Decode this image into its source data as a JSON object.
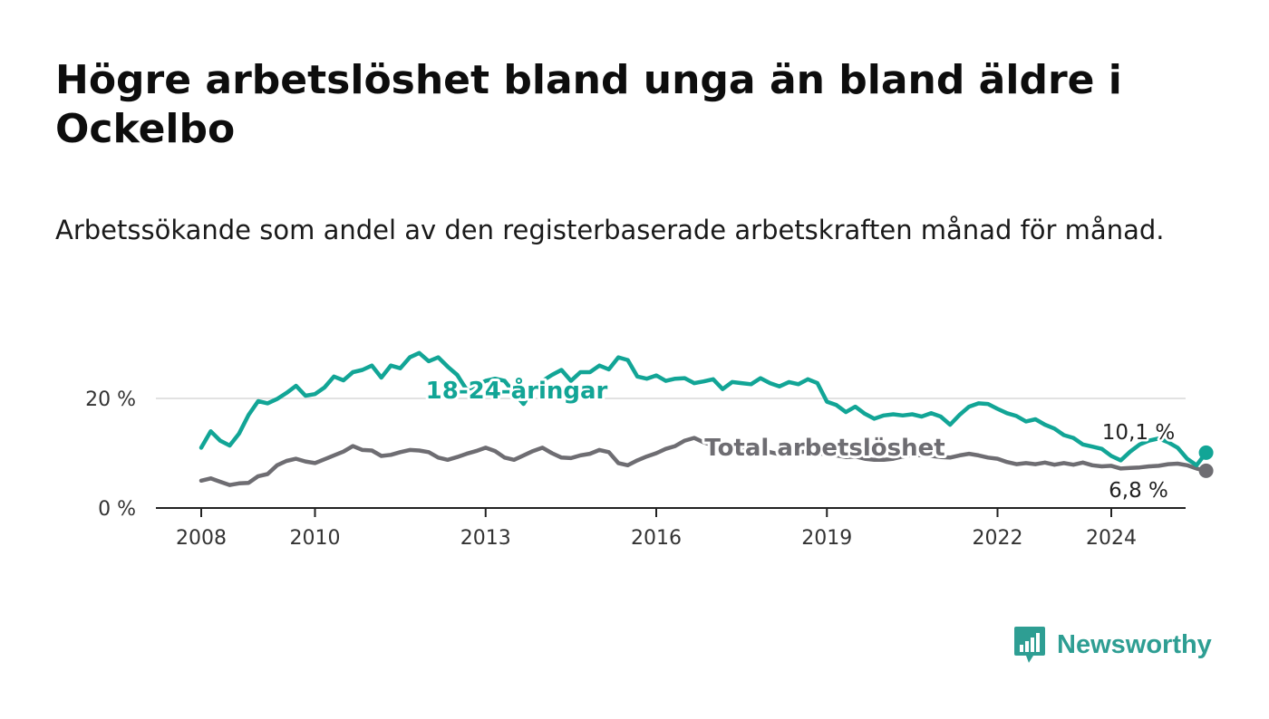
{
  "title": "Högre arbetslöshet bland unga än bland äldre i Ockelbo",
  "subtitle": "Arbetssökande som andel av den registerbaserade arbetskraften månad för månad.",
  "logo": {
    "text": "Newsworthy",
    "icon": "bar-chart-speech-bubble-icon",
    "color": "#2e9e93"
  },
  "chart_data": {
    "type": "line",
    "title": "Högre arbetslöshet bland unga än bland äldre i Ockelbo",
    "subtitle": "Arbetssökande som andel av den registerbaserade arbetskraften månad för månad.",
    "xlabel": "",
    "ylabel": "",
    "x_range": [
      "2007-01",
      "2025-12"
    ],
    "ylim": [
      0,
      30
    ],
    "y_ticks": [
      0,
      20
    ],
    "y_tick_labels": [
      "0 %",
      "20 %"
    ],
    "x_ticks": [
      "2008-01",
      "2010-01",
      "2013-01",
      "2016-01",
      "2019-01",
      "2022-01",
      "2024-01"
    ],
    "x_tick_labels": [
      "2008",
      "2010",
      "2013",
      "2016",
      "2019",
      "2022",
      "2024"
    ],
    "grid": true,
    "series": [
      {
        "name": "18-24-åringar",
        "color": "#12a596",
        "end_label": "10,1 %",
        "points": [
          [
            "2008-01",
            11.0
          ],
          [
            "2008-03",
            14.0
          ],
          [
            "2008-05",
            12.3
          ],
          [
            "2008-07",
            11.4
          ],
          [
            "2008-09",
            13.6
          ],
          [
            "2008-11",
            17.0
          ],
          [
            "2009-01",
            19.5
          ],
          [
            "2009-03",
            19.1
          ],
          [
            "2009-05",
            19.9
          ],
          [
            "2009-07",
            21.0
          ],
          [
            "2009-09",
            22.3
          ],
          [
            "2009-11",
            20.5
          ],
          [
            "2010-01",
            20.8
          ],
          [
            "2010-03",
            22.0
          ],
          [
            "2010-05",
            24.0
          ],
          [
            "2010-07",
            23.3
          ],
          [
            "2010-09",
            24.8
          ],
          [
            "2010-11",
            25.2
          ],
          [
            "2011-01",
            26.0
          ],
          [
            "2011-03",
            23.8
          ],
          [
            "2011-05",
            26.0
          ],
          [
            "2011-07",
            25.5
          ],
          [
            "2011-09",
            27.5
          ],
          [
            "2011-11",
            28.3
          ],
          [
            "2012-01",
            26.8
          ],
          [
            "2012-03",
            27.5
          ],
          [
            "2012-05",
            25.8
          ],
          [
            "2012-07",
            24.3
          ],
          [
            "2012-09",
            21.6
          ],
          [
            "2012-11",
            22.3
          ],
          [
            "2013-01",
            23.2
          ],
          [
            "2013-03",
            23.6
          ],
          [
            "2013-05",
            23.2
          ],
          [
            "2013-07",
            21.0
          ],
          [
            "2013-09",
            19.0
          ],
          [
            "2013-11",
            21.7
          ],
          [
            "2014-01",
            23.2
          ],
          [
            "2014-03",
            24.3
          ],
          [
            "2014-05",
            25.2
          ],
          [
            "2014-07",
            23.2
          ],
          [
            "2014-09",
            24.8
          ],
          [
            "2014-11",
            24.8
          ],
          [
            "2015-01",
            26.0
          ],
          [
            "2015-03",
            25.3
          ],
          [
            "2015-05",
            27.5
          ],
          [
            "2015-07",
            27.0
          ],
          [
            "2015-09",
            24.0
          ],
          [
            "2015-11",
            23.6
          ],
          [
            "2016-01",
            24.2
          ],
          [
            "2016-03",
            23.2
          ],
          [
            "2016-05",
            23.6
          ],
          [
            "2016-07",
            23.7
          ],
          [
            "2016-09",
            22.8
          ],
          [
            "2016-11",
            23.1
          ],
          [
            "2017-01",
            23.5
          ],
          [
            "2017-03",
            21.7
          ],
          [
            "2017-05",
            23.0
          ],
          [
            "2017-07",
            22.8
          ],
          [
            "2017-09",
            22.6
          ],
          [
            "2017-11",
            23.7
          ],
          [
            "2018-01",
            22.8
          ],
          [
            "2018-03",
            22.2
          ],
          [
            "2018-05",
            23.0
          ],
          [
            "2018-07",
            22.6
          ],
          [
            "2018-09",
            23.5
          ],
          [
            "2018-11",
            22.8
          ],
          [
            "2019-01",
            19.4
          ],
          [
            "2019-03",
            18.8
          ],
          [
            "2019-05",
            17.5
          ],
          [
            "2019-07",
            18.5
          ],
          [
            "2019-09",
            17.2
          ],
          [
            "2019-11",
            16.3
          ],
          [
            "2020-01",
            16.9
          ],
          [
            "2020-03",
            17.1
          ],
          [
            "2020-05",
            16.9
          ],
          [
            "2020-07",
            17.1
          ],
          [
            "2020-09",
            16.7
          ],
          [
            "2020-11",
            17.3
          ],
          [
            "2021-01",
            16.7
          ],
          [
            "2021-03",
            15.2
          ],
          [
            "2021-05",
            17.0
          ],
          [
            "2021-07",
            18.5
          ],
          [
            "2021-09",
            19.1
          ],
          [
            "2021-11",
            19.0
          ],
          [
            "2022-01",
            18.1
          ],
          [
            "2022-03",
            17.3
          ],
          [
            "2022-05",
            16.8
          ],
          [
            "2022-07",
            15.8
          ],
          [
            "2022-09",
            16.2
          ],
          [
            "2022-11",
            15.2
          ],
          [
            "2023-01",
            14.5
          ],
          [
            "2023-03",
            13.3
          ],
          [
            "2023-05",
            12.8
          ],
          [
            "2023-07",
            11.6
          ],
          [
            "2023-09",
            11.2
          ],
          [
            "2023-11",
            10.8
          ],
          [
            "2024-01",
            9.5
          ],
          [
            "2024-03",
            8.7
          ],
          [
            "2024-05",
            10.3
          ],
          [
            "2024-07",
            11.6
          ],
          [
            "2024-09",
            12.3
          ],
          [
            "2024-11",
            12.7
          ],
          [
            "2025-01",
            12.0
          ],
          [
            "2025-03",
            11.0
          ],
          [
            "2025-05",
            9.0
          ],
          [
            "2025-07",
            7.8
          ],
          [
            "2025-09",
            10.1
          ]
        ]
      },
      {
        "name": "Total arbetslöshet",
        "color": "#6e6d72",
        "end_label": "6,8 %",
        "points": [
          [
            "2008-01",
            5.0
          ],
          [
            "2008-03",
            5.4
          ],
          [
            "2008-05",
            4.8
          ],
          [
            "2008-07",
            4.2
          ],
          [
            "2008-09",
            4.5
          ],
          [
            "2008-11",
            4.6
          ],
          [
            "2009-01",
            5.8
          ],
          [
            "2009-03",
            6.2
          ],
          [
            "2009-05",
            7.8
          ],
          [
            "2009-07",
            8.6
          ],
          [
            "2009-09",
            9.0
          ],
          [
            "2009-11",
            8.5
          ],
          [
            "2010-01",
            8.2
          ],
          [
            "2010-03",
            8.9
          ],
          [
            "2010-05",
            9.6
          ],
          [
            "2010-07",
            10.3
          ],
          [
            "2010-09",
            11.3
          ],
          [
            "2010-11",
            10.6
          ],
          [
            "2011-01",
            10.5
          ],
          [
            "2011-03",
            9.5
          ],
          [
            "2011-05",
            9.7
          ],
          [
            "2011-07",
            10.2
          ],
          [
            "2011-09",
            10.6
          ],
          [
            "2011-11",
            10.5
          ],
          [
            "2012-01",
            10.2
          ],
          [
            "2012-03",
            9.2
          ],
          [
            "2012-05",
            8.8
          ],
          [
            "2012-07",
            9.3
          ],
          [
            "2012-09",
            9.9
          ],
          [
            "2012-11",
            10.4
          ],
          [
            "2013-01",
            11.0
          ],
          [
            "2013-03",
            10.4
          ],
          [
            "2013-05",
            9.2
          ],
          [
            "2013-07",
            8.8
          ],
          [
            "2013-09",
            9.6
          ],
          [
            "2013-11",
            10.4
          ],
          [
            "2014-01",
            11.0
          ],
          [
            "2014-03",
            10.0
          ],
          [
            "2014-05",
            9.2
          ],
          [
            "2014-07",
            9.1
          ],
          [
            "2014-09",
            9.6
          ],
          [
            "2014-11",
            9.9
          ],
          [
            "2015-01",
            10.6
          ],
          [
            "2015-03",
            10.2
          ],
          [
            "2015-05",
            8.2
          ],
          [
            "2015-07",
            7.8
          ],
          [
            "2015-09",
            8.7
          ],
          [
            "2015-11",
            9.4
          ],
          [
            "2016-01",
            10.0
          ],
          [
            "2016-03",
            10.8
          ],
          [
            "2016-05",
            11.3
          ],
          [
            "2016-07",
            12.3
          ],
          [
            "2016-09",
            12.8
          ],
          [
            "2016-11",
            12.0
          ],
          [
            "2017-01",
            11.4
          ],
          [
            "2017-03",
            11.3
          ],
          [
            "2017-05",
            11.8
          ],
          [
            "2017-07",
            11.0
          ],
          [
            "2017-09",
            11.5
          ],
          [
            "2017-11",
            10.8
          ],
          [
            "2018-01",
            10.2
          ],
          [
            "2018-03",
            9.8
          ],
          [
            "2018-05",
            9.9
          ],
          [
            "2018-07",
            10.2
          ],
          [
            "2018-09",
            10.3
          ],
          [
            "2018-11",
            10.0
          ],
          [
            "2019-01",
            9.8
          ],
          [
            "2019-03",
            9.6
          ],
          [
            "2019-05",
            9.3
          ],
          [
            "2019-07",
            9.4
          ],
          [
            "2019-09",
            9.0
          ],
          [
            "2019-11",
            8.8
          ],
          [
            "2020-01",
            8.8
          ],
          [
            "2020-03",
            9.0
          ],
          [
            "2020-05",
            9.4
          ],
          [
            "2020-07",
            9.7
          ],
          [
            "2020-09",
            9.6
          ],
          [
            "2020-11",
            9.5
          ],
          [
            "2021-01",
            9.3
          ],
          [
            "2021-03",
            9.2
          ],
          [
            "2021-05",
            9.6
          ],
          [
            "2021-07",
            9.9
          ],
          [
            "2021-09",
            9.6
          ],
          [
            "2021-11",
            9.2
          ],
          [
            "2022-01",
            9.0
          ],
          [
            "2022-03",
            8.4
          ],
          [
            "2022-05",
            8.0
          ],
          [
            "2022-07",
            8.2
          ],
          [
            "2022-09",
            8.0
          ],
          [
            "2022-11",
            8.3
          ],
          [
            "2023-01",
            7.9
          ],
          [
            "2023-03",
            8.2
          ],
          [
            "2023-05",
            7.9
          ],
          [
            "2023-07",
            8.3
          ],
          [
            "2023-09",
            7.8
          ],
          [
            "2023-11",
            7.6
          ],
          [
            "2024-01",
            7.7
          ],
          [
            "2024-03",
            7.2
          ],
          [
            "2024-05",
            7.3
          ],
          [
            "2024-07",
            7.4
          ],
          [
            "2024-09",
            7.6
          ],
          [
            "2024-11",
            7.7
          ],
          [
            "2025-01",
            8.0
          ],
          [
            "2025-03",
            8.1
          ],
          [
            "2025-05",
            7.8
          ],
          [
            "2025-07",
            7.2
          ],
          [
            "2025-09",
            6.8
          ]
        ]
      }
    ]
  }
}
